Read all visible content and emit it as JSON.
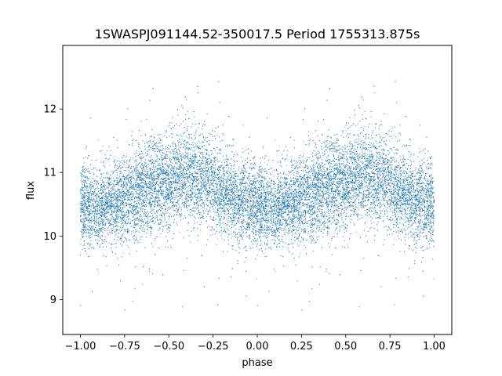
{
  "chart_data": {
    "type": "scatter",
    "title": "1SWASPJ091144.52-350017.5 Period 1755313.875s",
    "xlabel": "phase",
    "ylabel": "flux",
    "xlim": [
      -1.1,
      1.1
    ],
    "ylim": [
      8.45,
      13.0
    ],
    "x_ticks": [
      -1.0,
      -0.75,
      -0.5,
      -0.25,
      0.0,
      0.25,
      0.5,
      0.75,
      1.0
    ],
    "x_tick_labels": [
      "−1.00",
      "−0.75",
      "−0.50",
      "−0.25",
      "0.00",
      "0.25",
      "0.50",
      "0.75",
      "1.00"
    ],
    "y_ticks": [
      9,
      10,
      11,
      12
    ],
    "y_tick_labels": [
      "9",
      "10",
      "11",
      "12"
    ],
    "grid": false,
    "legend": "none",
    "point_color": "#1f77b4",
    "point_count_approx": 12000,
    "series": [
      {
        "phase_range": [
          -1.0,
          1.0
        ],
        "flux_profile": {
          "phase": [
            0.0,
            0.05,
            0.1,
            0.15,
            0.2,
            0.25,
            0.3,
            0.35,
            0.4,
            0.45,
            0.5,
            0.55,
            0.6,
            0.65,
            0.7,
            0.75,
            0.8,
            0.85,
            0.9,
            0.95,
            1.0
          ],
          "median_flux": [
            10.5,
            10.45,
            10.45,
            10.5,
            10.55,
            10.6,
            10.65,
            10.7,
            10.75,
            10.8,
            10.85,
            10.9,
            10.95,
            10.95,
            10.9,
            10.8,
            10.7,
            10.6,
            10.55,
            10.5,
            10.5
          ],
          "scatter_sigma": [
            0.32,
            0.3,
            0.3,
            0.3,
            0.32,
            0.33,
            0.35,
            0.35,
            0.35,
            0.36,
            0.36,
            0.36,
            0.36,
            0.35,
            0.35,
            0.34,
            0.33,
            0.33,
            0.32,
            0.32,
            0.32
          ]
        },
        "flux_min": 8.6,
        "flux_max": 12.8
      }
    ]
  }
}
